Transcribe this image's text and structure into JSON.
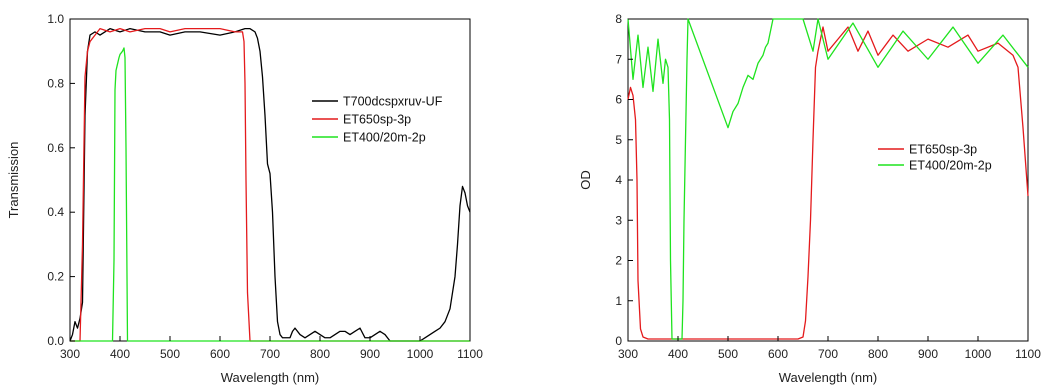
{
  "chart_data": [
    {
      "type": "line",
      "xlabel": "Wavelength (nm)",
      "ylabel": "Transmission",
      "xlim": [
        300,
        1100
      ],
      "ylim": [
        0,
        1.0
      ],
      "xticks": [
        "300",
        "400",
        "500",
        "600",
        "700",
        "800",
        "900",
        "1000",
        "1100"
      ],
      "yticks": [
        "0.0",
        "0.2",
        "0.4",
        "0.6",
        "0.8",
        "1.0"
      ],
      "grid": false,
      "legend_position": "right",
      "series": [
        {
          "name": "T700dcspxruv-UF",
          "color": "#000000",
          "x": [
            300,
            305,
            310,
            315,
            320,
            325,
            330,
            335,
            340,
            350,
            360,
            380,
            400,
            420,
            450,
            480,
            500,
            530,
            560,
            600,
            630,
            650,
            660,
            670,
            675,
            680,
            685,
            690,
            695,
            700,
            705,
            710,
            715,
            720,
            725,
            730,
            740,
            745,
            750,
            760,
            770,
            780,
            790,
            800,
            810,
            820,
            830,
            840,
            850,
            860,
            870,
            880,
            890,
            900,
            910,
            920,
            930,
            940,
            960,
            980,
            1000,
            1010,
            1020,
            1030,
            1040,
            1050,
            1060,
            1070,
            1075,
            1080,
            1085,
            1090,
            1095,
            1100
          ],
          "y": [
            0.0,
            0.02,
            0.06,
            0.04,
            0.07,
            0.12,
            0.7,
            0.9,
            0.95,
            0.96,
            0.95,
            0.97,
            0.96,
            0.97,
            0.96,
            0.96,
            0.95,
            0.96,
            0.96,
            0.95,
            0.96,
            0.97,
            0.97,
            0.96,
            0.94,
            0.9,
            0.82,
            0.7,
            0.55,
            0.52,
            0.4,
            0.2,
            0.06,
            0.02,
            0.01,
            0.01,
            0.01,
            0.03,
            0.04,
            0.02,
            0.01,
            0.02,
            0.03,
            0.02,
            0.01,
            0.01,
            0.02,
            0.03,
            0.03,
            0.02,
            0.03,
            0.04,
            0.01,
            0.01,
            0.02,
            0.03,
            0.02,
            0.0,
            0.0,
            0.0,
            0.0,
            0.01,
            0.02,
            0.03,
            0.04,
            0.06,
            0.1,
            0.2,
            0.3,
            0.42,
            0.48,
            0.46,
            0.42,
            0.4
          ]
        },
        {
          "name": "ET650sp-3p",
          "color": "#e41a1c",
          "x": [
            300,
            320,
            325,
            330,
            335,
            340,
            350,
            360,
            380,
            400,
            420,
            450,
            480,
            500,
            530,
            560,
            600,
            630,
            645,
            648,
            650,
            652,
            655,
            660,
            700,
            800,
            900,
            1000,
            1100
          ],
          "y": [
            0.0,
            0.0,
            0.3,
            0.82,
            0.9,
            0.93,
            0.95,
            0.97,
            0.96,
            0.97,
            0.96,
            0.97,
            0.97,
            0.96,
            0.97,
            0.97,
            0.97,
            0.96,
            0.96,
            0.93,
            0.8,
            0.5,
            0.15,
            0.0,
            0.0,
            0.0,
            0.0,
            0.0,
            0.0
          ]
        },
        {
          "name": "ET400/20m-2p",
          "color": "#1fe31f",
          "x": [
            300,
            385,
            388,
            390,
            392,
            395,
            398,
            400,
            405,
            408,
            410,
            412,
            415,
            420,
            500,
            600,
            700,
            800,
            900,
            1000,
            1100
          ],
          "y": [
            0.0,
            0.0,
            0.25,
            0.78,
            0.84,
            0.86,
            0.88,
            0.89,
            0.9,
            0.91,
            0.88,
            0.6,
            0.0,
            0.0,
            0.0,
            0.0,
            0.0,
            0.0,
            0.0,
            0.0,
            0.0
          ]
        }
      ]
    },
    {
      "type": "line",
      "xlabel": "Wavelength (nm)",
      "ylabel": "OD",
      "xlim": [
        300,
        1100
      ],
      "ylim": [
        0,
        8
      ],
      "xticks": [
        "300",
        "400",
        "500",
        "600",
        "700",
        "800",
        "900",
        "1000",
        "1100"
      ],
      "yticks": [
        "0",
        "1",
        "2",
        "3",
        "4",
        "5",
        "6",
        "7",
        "8"
      ],
      "grid": false,
      "legend_position": "right",
      "series": [
        {
          "name": "ET650sp-3p",
          "color": "#e41a1c",
          "x": [
            300,
            305,
            310,
            315,
            318,
            320,
            325,
            330,
            340,
            360,
            400,
            450,
            500,
            550,
            600,
            640,
            650,
            655,
            660,
            665,
            670,
            675,
            680,
            690,
            700,
            720,
            740,
            760,
            780,
            800,
            830,
            860,
            900,
            940,
            980,
            1000,
            1040,
            1070,
            1080,
            1090,
            1100
          ],
          "y": [
            6.0,
            6.3,
            6.1,
            5.5,
            4.0,
            1.5,
            0.3,
            0.1,
            0.05,
            0.05,
            0.05,
            0.05,
            0.05,
            0.05,
            0.05,
            0.05,
            0.1,
            0.5,
            1.6,
            3.0,
            5.0,
            6.8,
            7.2,
            7.8,
            7.2,
            7.5,
            7.8,
            7.2,
            7.7,
            7.1,
            7.6,
            7.2,
            7.5,
            7.3,
            7.6,
            7.2,
            7.4,
            7.1,
            6.8,
            5.3,
            3.6
          ]
        },
        {
          "name": "ET400/20m-2p",
          "color": "#1fe31f",
          "x": [
            300,
            310,
            320,
            330,
            340,
            350,
            360,
            370,
            375,
            380,
            383,
            385,
            388,
            392,
            396,
            400,
            404,
            408,
            410,
            412,
            415,
            418,
            420,
            500,
            505,
            510,
            520,
            530,
            540,
            550,
            560,
            570,
            575,
            580,
            590,
            650,
            670,
            680,
            700,
            750,
            800,
            850,
            900,
            950,
            1000,
            1050,
            1100
          ],
          "y": [
            8.0,
            6.5,
            7.6,
            6.3,
            7.3,
            6.2,
            7.5,
            6.4,
            7.0,
            6.8,
            5.5,
            2.0,
            0.05,
            0.05,
            0.05,
            0.05,
            0.05,
            0.05,
            1.0,
            3.0,
            5.0,
            7.0,
            8.0,
            5.3,
            5.5,
            5.7,
            5.9,
            6.3,
            6.6,
            6.5,
            6.9,
            7.1,
            7.3,
            7.4,
            8.0,
            8.0,
            7.2,
            8.0,
            7.0,
            7.9,
            6.8,
            7.7,
            7.0,
            7.8,
            6.9,
            7.6,
            6.8
          ]
        }
      ]
    }
  ]
}
